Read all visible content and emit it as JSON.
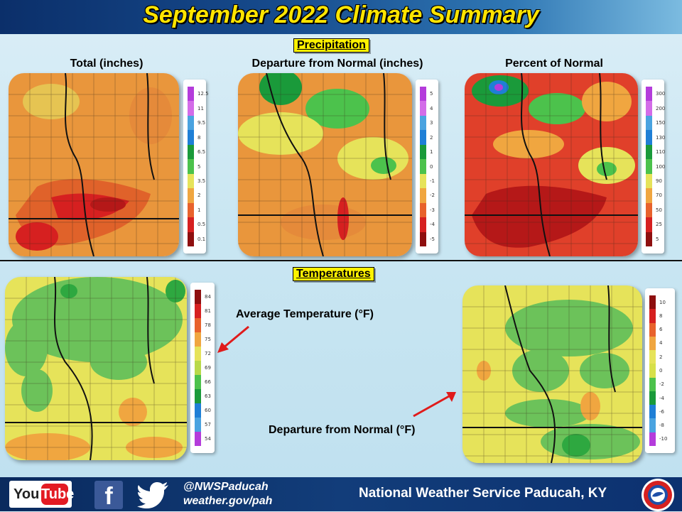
{
  "header": {
    "title": "September 2022 Climate Summary"
  },
  "precipitation": {
    "section_label": "Precipitation",
    "panels": [
      {
        "label": "Total (inches)",
        "ticks": [
          "12.5",
          "11",
          "9.5",
          "8",
          "6.5",
          "5",
          "3.5",
          "2",
          "1",
          "0.5",
          "0.1"
        ],
        "colors": [
          "#b43cdb",
          "#d36ce8",
          "#4aa3e0",
          "#1f7fd6",
          "#1a9a3a",
          "#4cc24c",
          "#e6e35a",
          "#f0a640",
          "#e8622c",
          "#d62020",
          "#8e0f0f"
        ]
      },
      {
        "label": "Departure from Normal (inches)",
        "ticks": [
          "5",
          "4",
          "3",
          "2",
          "1",
          "0",
          "-1",
          "-2",
          "-3",
          "-4",
          "-5"
        ],
        "colors": [
          "#b43cdb",
          "#d36ce8",
          "#4aa3e0",
          "#1f7fd6",
          "#1a9a3a",
          "#4cc24c",
          "#e6e35a",
          "#f0a640",
          "#e8622c",
          "#d62020",
          "#8e0f0f"
        ]
      },
      {
        "label": "Percent of Normal",
        "ticks": [
          "300",
          "200",
          "150",
          "130",
          "110",
          "100",
          "90",
          "70",
          "50",
          "25",
          "5"
        ],
        "colors": [
          "#b43cdb",
          "#d36ce8",
          "#4aa3e0",
          "#1f7fd6",
          "#1a9a3a",
          "#4cc24c",
          "#e6e35a",
          "#f0a640",
          "#e8622c",
          "#d62020",
          "#8e0f0f"
        ]
      }
    ]
  },
  "temperatures": {
    "section_label": "Temperatures",
    "average_label": "Average Temperature (°F)",
    "departure_label": "Departure from Normal (°F)",
    "average_ticks": [
      "84",
      "81",
      "78",
      "75",
      "72",
      "69",
      "66",
      "63",
      "60",
      "57",
      "54"
    ],
    "average_colors": [
      "#8e0f0f",
      "#d62020",
      "#e8622c",
      "#f0a640",
      "#e6e35a",
      "#b9d94a",
      "#4cc24c",
      "#1a9a3a",
      "#1f7fd6",
      "#4aa3e0",
      "#b43cdb"
    ],
    "departure_ticks": [
      "10",
      "8",
      "6",
      "4",
      "2",
      "0",
      "-2",
      "-4",
      "-6",
      "-8",
      "-10"
    ],
    "departure_colors": [
      "#8e0f0f",
      "#d62020",
      "#e8622c",
      "#f0a640",
      "#e6e35a",
      "#d7e04a",
      "#4cc24c",
      "#1a9a3a",
      "#1f7fd6",
      "#4aa3e0",
      "#b43cdb"
    ]
  },
  "footer": {
    "youtube_you": "You",
    "youtube_tube": "Tube",
    "facebook_glyph": "f",
    "handle": "@NWSPaducah",
    "website": "weather.gov/pah",
    "office": "National Weather Service Paducah, KY"
  }
}
